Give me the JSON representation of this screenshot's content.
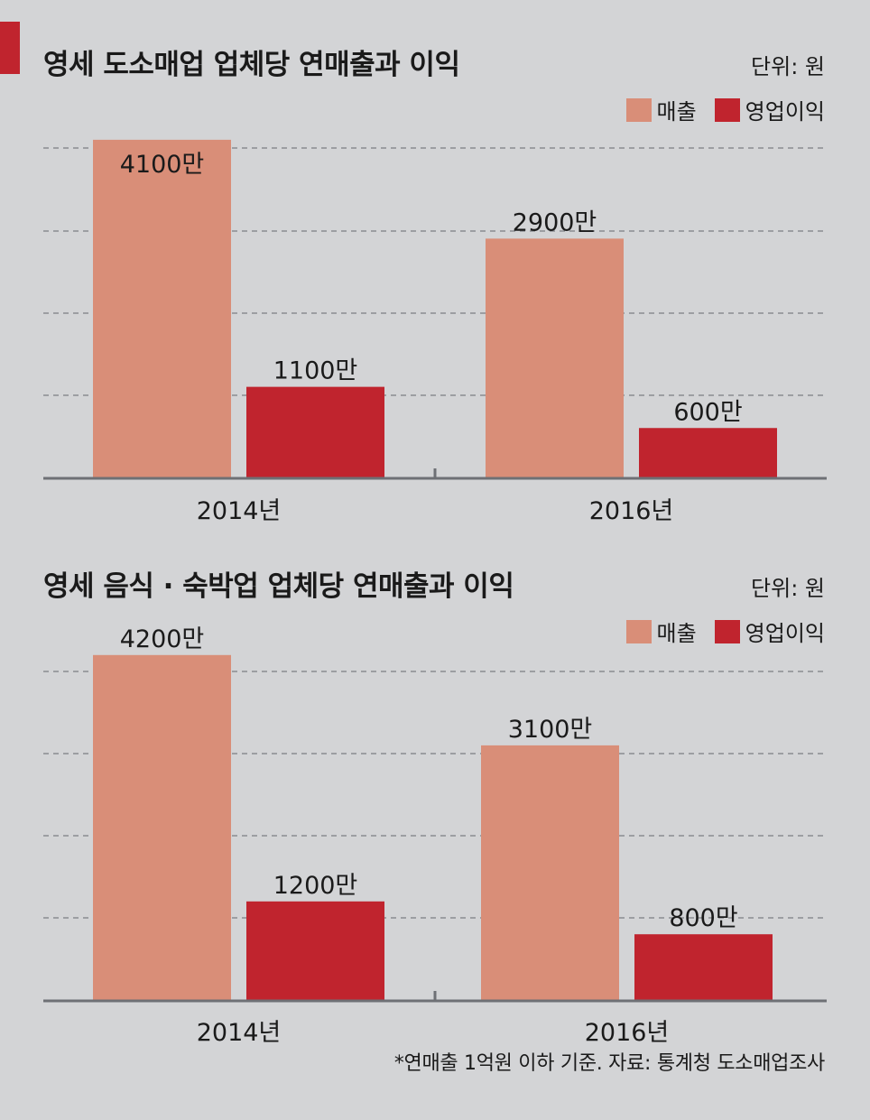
{
  "colors": {
    "background": "#d3d4d6",
    "revenue": "#d98e78",
    "profit": "#c0242e",
    "gridline": "#8a8c90",
    "axis": "#6e7075",
    "accent_bar": "#c0242e"
  },
  "chart_data": [
    {
      "type": "bar",
      "title": "영세 도소매업 업체당 연매출과 이익",
      "unit_label": "단위: 원",
      "categories": [
        "2014년",
        "2016년"
      ],
      "series": [
        {
          "name": "매출",
          "values": [
            41000000,
            29000000
          ],
          "labels": [
            "4100만",
            "2900만"
          ]
        },
        {
          "name": "영업이익",
          "values": [
            11000000,
            6000000
          ],
          "labels": [
            "1100만",
            "600만"
          ]
        }
      ],
      "ylim": [
        0,
        40000000
      ],
      "grid": true,
      "legend_position": "top-right"
    },
    {
      "type": "bar",
      "title": "영세 음식 · 숙박업 업체당 연매출과 이익",
      "unit_label": "단위: 원",
      "categories": [
        "2014년",
        "2016년"
      ],
      "series": [
        {
          "name": "매출",
          "values": [
            42000000,
            31000000
          ],
          "labels": [
            "4200만",
            "3100만"
          ]
        },
        {
          "name": "영업이익",
          "values": [
            12000000,
            8000000
          ],
          "labels": [
            "1200만",
            "800만"
          ]
        }
      ],
      "ylim": [
        0,
        40000000
      ],
      "grid": true,
      "legend_position": "top-right"
    }
  ],
  "footnote": "*연매출 1억원 이하 기준. 자료: 통계청 도소매업조사"
}
